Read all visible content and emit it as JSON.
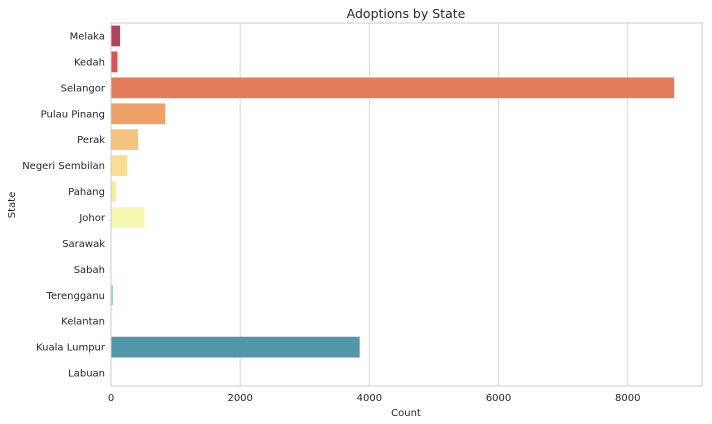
{
  "chart_data": {
    "type": "bar",
    "orientation": "horizontal",
    "title": "Adoptions by State",
    "xlabel": "Count",
    "ylabel": "State",
    "xlim": [
      0,
      9150
    ],
    "xticks": [
      0,
      2000,
      4000,
      6000,
      8000
    ],
    "grid": "vertical",
    "categories": [
      "Melaka",
      "Kedah",
      "Selangor",
      "Pulau Pinang",
      "Perak",
      "Negeri Sembilan",
      "Pahang",
      "Johor",
      "Sarawak",
      "Sabah",
      "Terengganu",
      "Kelantan",
      "Kuala Lumpur",
      "Labuan"
    ],
    "values": [
      140,
      100,
      8720,
      840,
      420,
      250,
      80,
      520,
      5,
      5,
      30,
      5,
      3850,
      2
    ],
    "colors": [
      "#b5415d",
      "#d9534f",
      "#e27c5a",
      "#f0a066",
      "#f6c37e",
      "#f8dd94",
      "#faec9f",
      "#f5f8ae",
      "#e4f2a2",
      "#c6e69f",
      "#9ed5a5",
      "#77c3a7",
      "#5296aa",
      "#5e6fb0"
    ]
  }
}
